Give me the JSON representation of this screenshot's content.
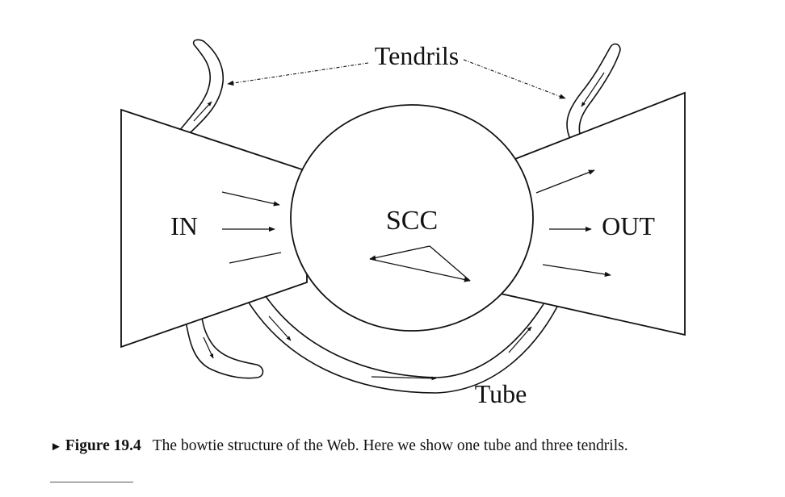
{
  "diagram": {
    "labels": {
      "scc": "SCC",
      "in": "IN",
      "out": "OUT",
      "tendrils": "Tendrils",
      "tube": "Tube"
    }
  },
  "caption": {
    "marker": "►",
    "label": "Figure 19.4",
    "text": "The bowtie structure of the Web. Here we show one tube and three tendrils."
  }
}
